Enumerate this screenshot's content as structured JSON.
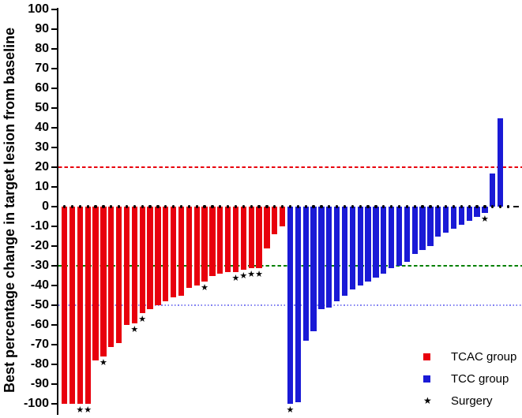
{
  "chart_data": {
    "type": "bar",
    "variant": "waterfall",
    "title": "",
    "ylabel": "Best percentage change in target lesion from baseline",
    "xlabel": "",
    "ylim": [
      -100,
      100
    ],
    "yticks": [
      100,
      90,
      80,
      70,
      60,
      50,
      40,
      30,
      20,
      10,
      0,
      -10,
      -20,
      -30,
      -40,
      -50,
      -60,
      -70,
      -80,
      -90,
      -100
    ],
    "grid": false,
    "legend_position": "bottom-right",
    "surgery_symbol": "★",
    "reference_lines": [
      {
        "value": 20,
        "color": "#e8000d",
        "style": "dashed"
      },
      {
        "value": -30,
        "color": "#008000",
        "style": "dashed"
      },
      {
        "value": -50,
        "color": "#8080f2",
        "style": "dotted"
      }
    ],
    "series": [
      {
        "name": "TCAC group",
        "color": "#e8000d",
        "values": [
          -100,
          -100,
          -100,
          -100,
          -78,
          -76,
          -71,
          -69,
          -60,
          -59,
          -54,
          -52,
          -50,
          -48,
          -46,
          -45,
          -41,
          -40,
          -38,
          -35,
          -34,
          -33,
          -33,
          -32,
          -31,
          -31,
          -21,
          -14,
          -10
        ],
        "surgery_indices": [
          2,
          3,
          5,
          9,
          10,
          18,
          22,
          23,
          24,
          25
        ],
        "markers": []
      },
      {
        "name": "TCC group",
        "color": "#1a1ad6",
        "values": [
          -100,
          -99,
          -68,
          -63,
          -52,
          -51,
          -48,
          -45,
          -42,
          -40,
          -38,
          -36,
          -34,
          -31,
          -30,
          -28,
          -24,
          -22,
          -20,
          -15,
          -13,
          -11,
          -9,
          -7,
          -5,
          -3,
          17,
          45,
          0,
          0
        ],
        "surgery_indices": [
          0,
          25
        ],
        "markers": [
          {
            "index": 28,
            "style": "dot"
          },
          {
            "index": 29,
            "style": "dash"
          }
        ]
      }
    ],
    "legend": [
      {
        "label": "TCAC group",
        "type": "square",
        "color": "#e8000d"
      },
      {
        "label": "TCC group",
        "type": "square",
        "color": "#1a1ad6"
      },
      {
        "label": "Surgery",
        "type": "star"
      }
    ]
  }
}
